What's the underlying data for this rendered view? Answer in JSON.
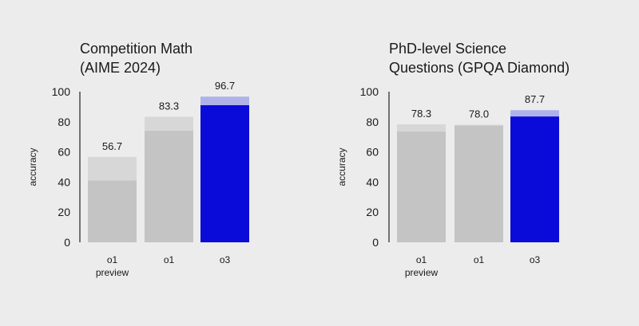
{
  "colors": {
    "background": "#ececec",
    "bar_gray_solid": "#c4c4c4",
    "bar_gray_light": "#d7d7d7",
    "bar_blue_solid": "#0a0ad9",
    "bar_blue_light": "#aeb2e8",
    "text": "#1a1a1a"
  },
  "chart_data": [
    {
      "type": "bar",
      "title_lines": [
        "Competition Math",
        "(AIME 2024)"
      ],
      "ylabel": "accuracy",
      "ylim": [
        0,
        100
      ],
      "yticks": [
        0,
        20,
        40,
        60,
        80,
        100
      ],
      "categories": [
        [
          "o1",
          "preview"
        ],
        [
          "o1"
        ],
        [
          "o3"
        ]
      ],
      "values": [
        56.7,
        83.3,
        96.7
      ],
      "value_labels": [
        "56.7",
        "83.3",
        "96.7"
      ],
      "solid_values": [
        41,
        74,
        91
      ],
      "highlight_index": 2
    },
    {
      "type": "bar",
      "title_lines": [
        "PhD-level Science",
        "Questions (GPQA Diamond)"
      ],
      "ylabel": "accuracy",
      "ylim": [
        0,
        100
      ],
      "yticks": [
        0,
        20,
        40,
        60,
        80,
        100
      ],
      "categories": [
        [
          "o1",
          "preview"
        ],
        [
          "o1"
        ],
        [
          "o3"
        ]
      ],
      "values": [
        78.3,
        78.0,
        87.7
      ],
      "value_labels": [
        "78.3",
        "78.0",
        "87.7"
      ],
      "solid_values": [
        73.5,
        77.5,
        83.5
      ],
      "highlight_index": 2
    }
  ]
}
